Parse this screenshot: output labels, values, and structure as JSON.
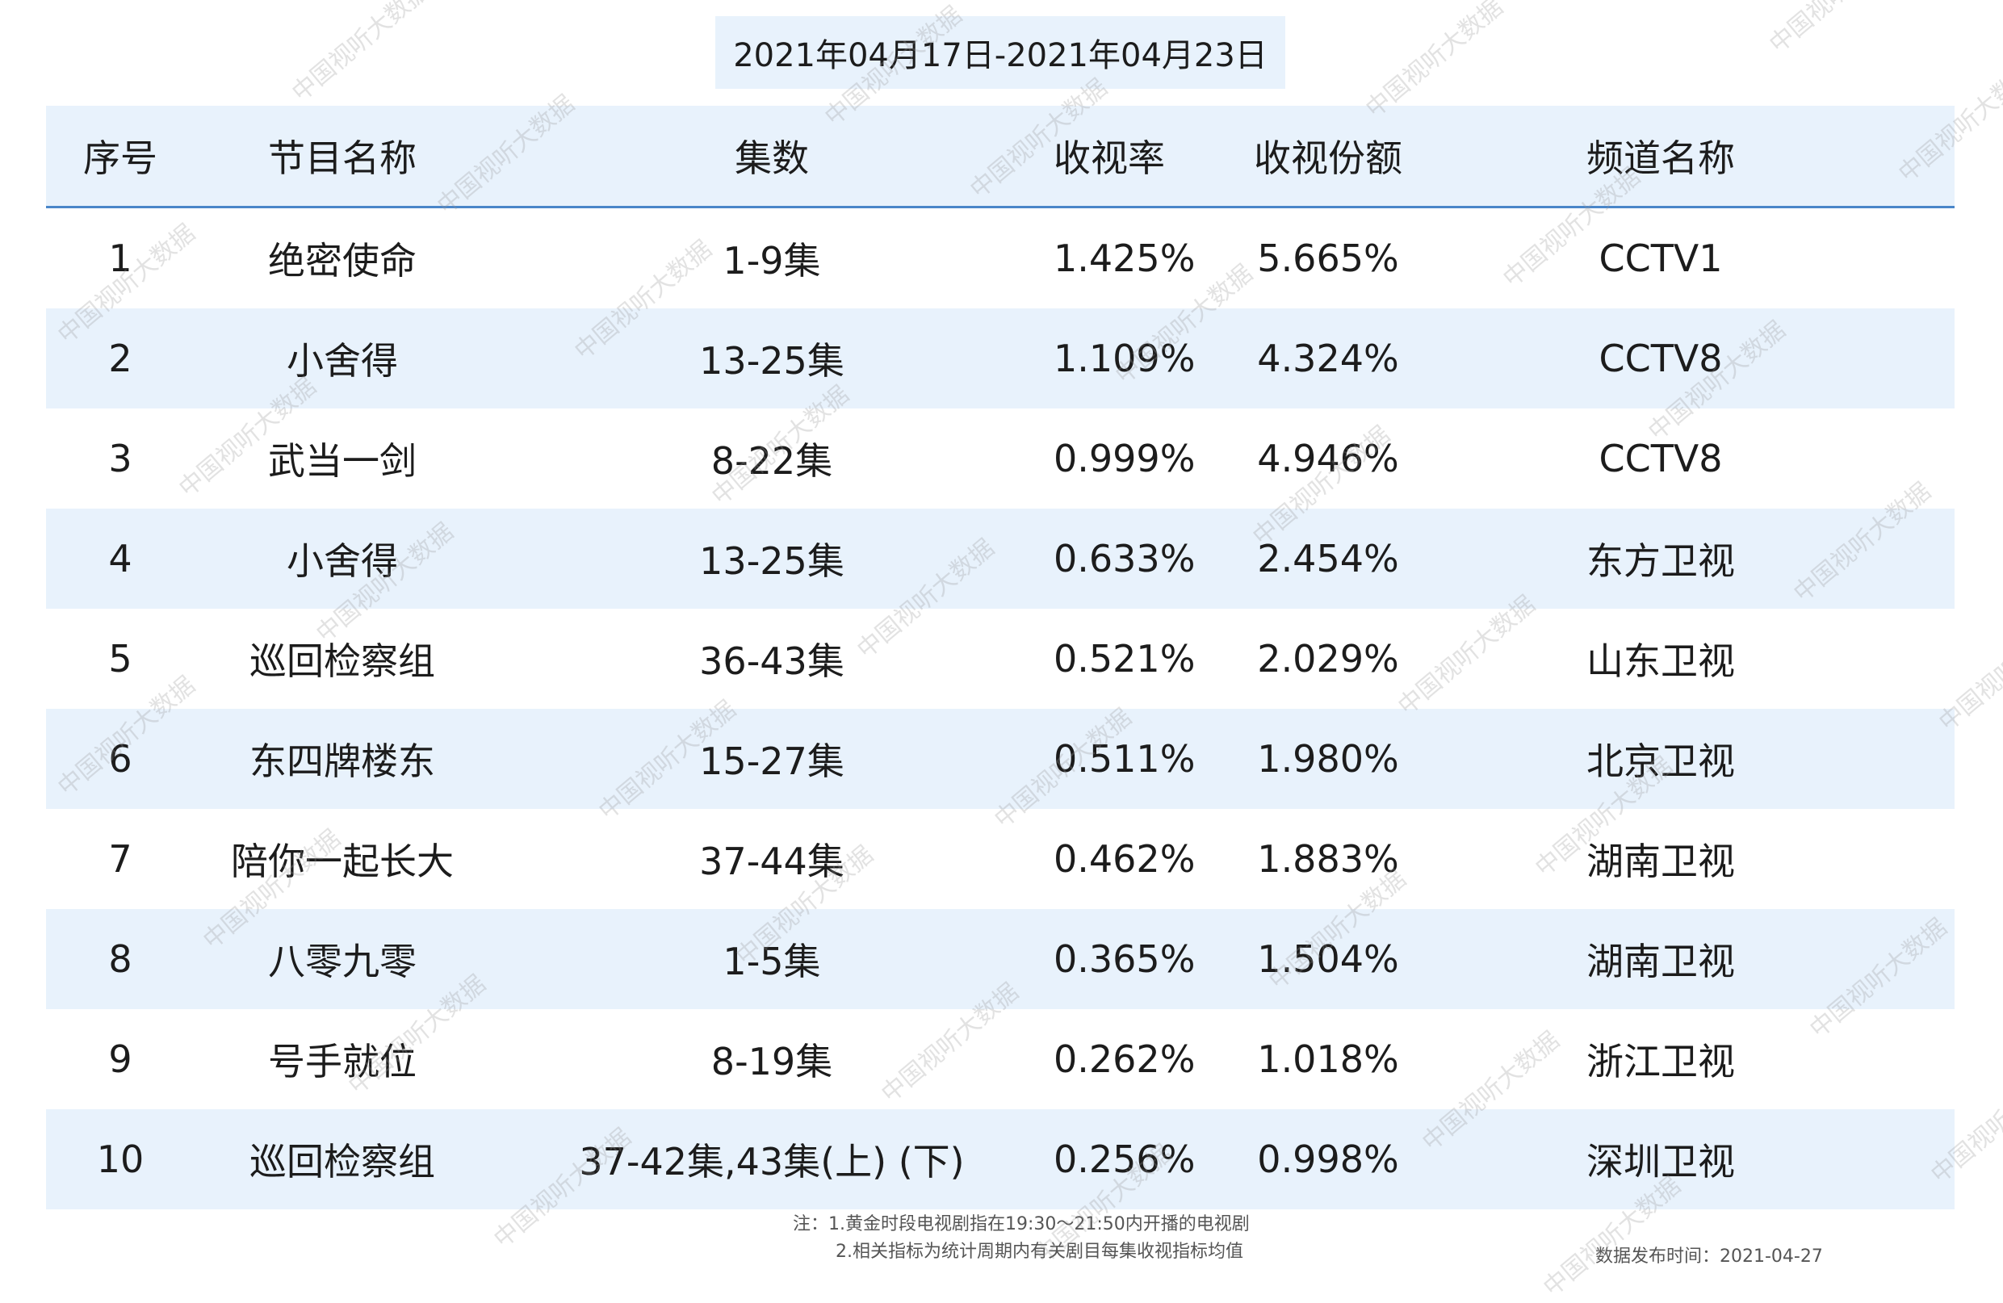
{
  "title": "2021年04月17日-2021年04月23日",
  "headers": [
    "序号",
    "节目名称",
    "集数",
    "收视率",
    "收视份额",
    "频道名称"
  ],
  "rows": [
    [
      "1",
      "绝密使命",
      "1-9集",
      "1.425%",
      "5.665%",
      "CCTV1"
    ],
    [
      "2",
      "小舍得",
      "13-25集",
      "1.109%",
      "4.324%",
      "CCTV8"
    ],
    [
      "3",
      "武当一剑",
      "8-22集",
      "0.999%",
      "4.946%",
      "CCTV8"
    ],
    [
      "4",
      "小舍得",
      "13-25集",
      "0.633%",
      "2.454%",
      "东方卫视"
    ],
    [
      "5",
      "巡回检察组",
      "36-43集",
      "0.521%",
      "2.029%",
      "山东卫视"
    ],
    [
      "6",
      "东四牌楼东",
      "15-27集",
      "0.511%",
      "1.980%",
      "北京卫视"
    ],
    [
      "7",
      "陪你一起长大",
      "37-44集",
      "0.462%",
      "1.883%",
      "湖南卫视"
    ],
    [
      "8",
      "八零九零",
      "1-5集",
      "0.365%",
      "1.504%",
      "湖南卫视"
    ],
    [
      "9",
      "号手就位",
      "8-19集",
      "0.262%",
      "1.018%",
      "浙江卫视"
    ],
    [
      "10",
      "巡回检察组",
      "37-42集,43集(上) (下)",
      "0.256%",
      "0.998%",
      "深圳卫视"
    ]
  ],
  "notes": {
    "line1": "注：1.黄金时段电视剧指在19:30～21:50内开播的电视剧",
    "line2": "2.相关指标为统计周期内有关剧目每集收视指标均值"
  },
  "publish_date": "数据发布时间：2021-04-27",
  "watermark": "中国视听大数据",
  "colors": {
    "header_bg": "#e8f2fc",
    "header_rule": "#4a86c9",
    "alt_row_bg": "#e8f2fc"
  }
}
